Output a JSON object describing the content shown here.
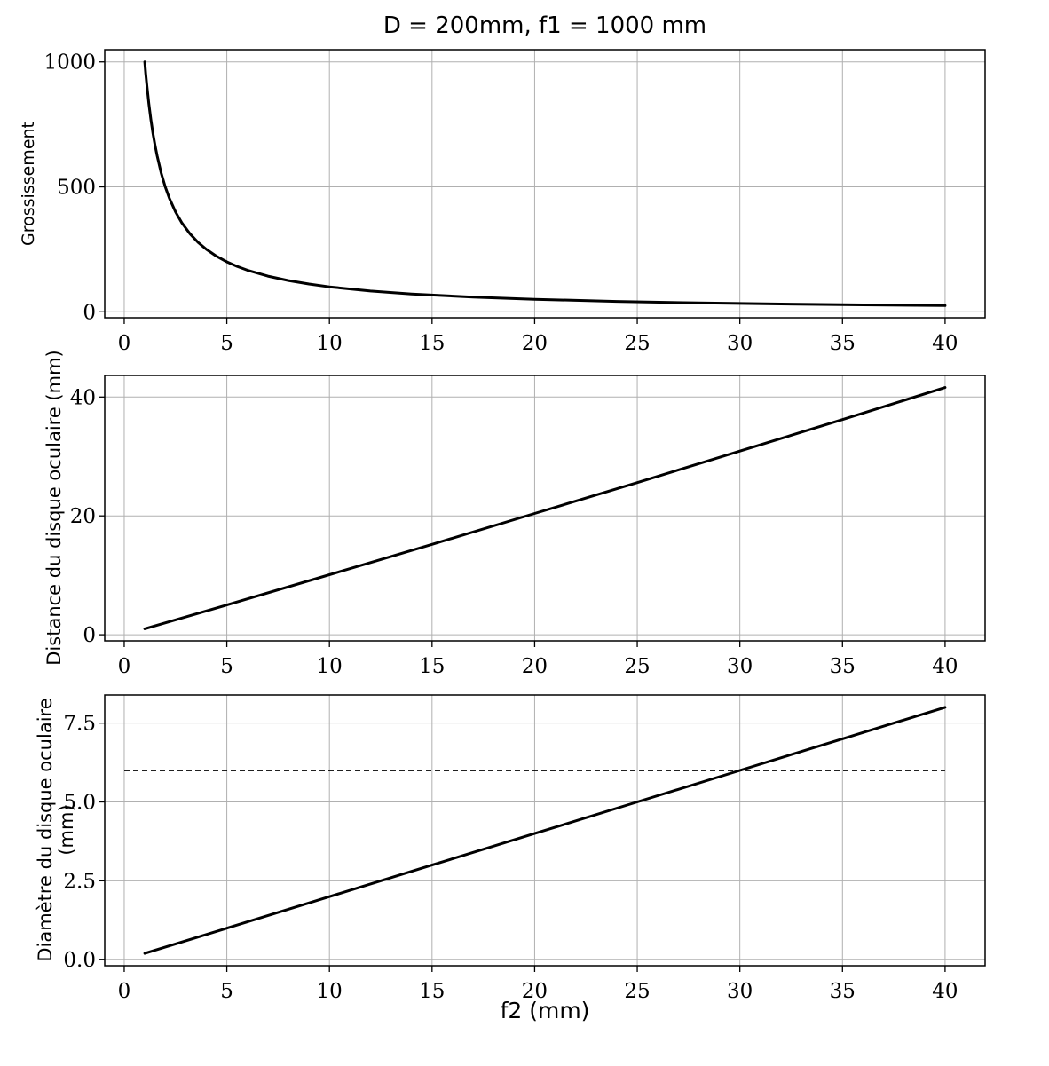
{
  "figure": {
    "title": "D = 200mm, f1 = 1000 mm",
    "xlabel": "f2 (mm)",
    "background_color": "#ffffff",
    "grid_color": "#b0b0b0",
    "line_color": "#000000",
    "text_color": "#000000"
  },
  "chart_data": [
    {
      "type": "line",
      "title": "D = 200mm, f1 = 1000 mm",
      "xlabel": "",
      "ylabel": "Grossissement",
      "xlim": [
        -0.95,
        41.95
      ],
      "ylim": [
        -23.75,
        1048.75
      ],
      "xticks": [
        0,
        5,
        10,
        15,
        20,
        25,
        30,
        35,
        40
      ],
      "xtick_labels": [
        "0",
        "5",
        "10",
        "15",
        "20",
        "25",
        "30",
        "35",
        "40"
      ],
      "yticks": [
        0,
        500,
        1000
      ],
      "ytick_labels": [
        "0",
        "500",
        "1000"
      ],
      "grid": true,
      "legend": false,
      "series": [
        {
          "name": "grossissement",
          "style": "solid",
          "x": [
            1,
            1.05,
            1.1,
            1.15,
            1.2,
            1.3,
            1.4,
            1.5,
            1.6,
            1.8,
            2,
            2.2,
            2.5,
            2.8,
            3.2,
            3.6,
            4,
            4.5,
            5,
            5.5,
            6,
            7,
            8,
            9,
            10,
            12,
            14,
            17,
            20,
            24,
            28,
            32,
            36,
            40
          ],
          "y": [
            1000,
            952.4,
            909.1,
            869.6,
            833.3,
            769.2,
            714.3,
            666.7,
            625,
            555.6,
            500,
            454.5,
            400,
            357.1,
            312.5,
            277.8,
            250,
            222.2,
            200,
            181.8,
            166.7,
            142.9,
            125,
            111.1,
            100,
            83.3,
            71.4,
            58.8,
            50,
            41.7,
            35.7,
            31.3,
            27.8,
            25
          ]
        }
      ]
    },
    {
      "type": "line",
      "title": "",
      "xlabel": "",
      "ylabel": "Distance du disque oculaire (mm)",
      "xlim": [
        -0.95,
        41.95
      ],
      "ylim": [
        -1.03,
        43.63
      ],
      "xticks": [
        0,
        5,
        10,
        15,
        20,
        25,
        30,
        35,
        40
      ],
      "xtick_labels": [
        "0",
        "5",
        "10",
        "15",
        "20",
        "25",
        "30",
        "35",
        "40"
      ],
      "yticks": [
        0,
        20,
        40
      ],
      "ytick_labels": [
        "0",
        "20",
        "40"
      ],
      "grid": true,
      "legend": false,
      "series": [
        {
          "name": "distance-disque-oculaire",
          "style": "solid",
          "x": [
            1,
            5,
            10,
            15,
            20,
            25,
            30,
            35,
            40
          ],
          "y": [
            1.0,
            5.0,
            10.1,
            15.2,
            20.4,
            25.6,
            30.9,
            36.2,
            41.6
          ]
        }
      ]
    },
    {
      "type": "line",
      "title": "",
      "xlabel": "f2 (mm)",
      "ylabel": "Diamètre du disque oculaire (mm)",
      "xlim": [
        -0.95,
        41.95
      ],
      "ylim": [
        -0.19,
        8.39
      ],
      "xticks": [
        0,
        5,
        10,
        15,
        20,
        25,
        30,
        35,
        40
      ],
      "xtick_labels": [
        "0",
        "5",
        "10",
        "15",
        "20",
        "25",
        "30",
        "35",
        "40"
      ],
      "yticks": [
        0,
        2.5,
        5,
        7.5
      ],
      "ytick_labels": [
        "0.0",
        "2.5",
        "5.0",
        "7.5"
      ],
      "grid": true,
      "legend": false,
      "series": [
        {
          "name": "diametre-disque-oculaire",
          "style": "solid",
          "x": [
            1,
            5,
            10,
            15,
            20,
            25,
            30,
            35,
            40
          ],
          "y": [
            0.2,
            1,
            2,
            3,
            4,
            5,
            6,
            7,
            8
          ]
        },
        {
          "name": "seuil-pupille-6mm",
          "style": "dashed",
          "x": [
            0,
            40
          ],
          "y": [
            6,
            6
          ]
        }
      ]
    }
  ]
}
